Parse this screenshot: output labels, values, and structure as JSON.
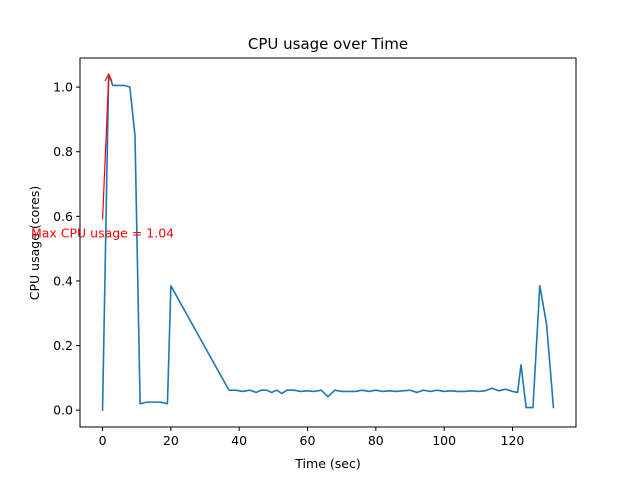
{
  "chart_data": {
    "type": "line",
    "title": "CPU usage over Time",
    "xlabel": "Time (sec)",
    "ylabel": "CPU usage (cores)",
    "xlim": [
      -6.6,
      138.6
    ],
    "ylim": [
      -0.052,
      1.09
    ],
    "xticks": [
      0,
      20,
      40,
      60,
      80,
      100,
      120
    ],
    "xtick_labels": [
      "0",
      "20",
      "40",
      "60",
      "80",
      "100",
      "120"
    ],
    "yticks": [
      0.0,
      0.2,
      0.4,
      0.6,
      0.8,
      1.0
    ],
    "ytick_labels": [
      "0.0",
      "0.2",
      "0.4",
      "0.6",
      "0.8",
      "1.0"
    ],
    "grid": false,
    "series": [
      {
        "color": "#1f77b4",
        "x": [
          0,
          1.8,
          3,
          5,
          6.5,
          8,
          9.5,
          11,
          13,
          15,
          17,
          19,
          20,
          37,
          39,
          41,
          43,
          45,
          46.5,
          48,
          49.5,
          51,
          52.5,
          54,
          56,
          58,
          60,
          62,
          64,
          66,
          68,
          70,
          72,
          74,
          76,
          78,
          80,
          82,
          84,
          86,
          88,
          90,
          92,
          94,
          96,
          98,
          100,
          102,
          104,
          106,
          108,
          110,
          112,
          114,
          116,
          118,
          120,
          121.5,
          122.5,
          124,
          126,
          128,
          130,
          132
        ],
        "y": [
          0.0,
          1.04,
          1.005,
          1.005,
          1.005,
          1.0,
          0.85,
          0.02,
          0.025,
          0.025,
          0.025,
          0.02,
          0.385,
          0.062,
          0.062,
          0.058,
          0.062,
          0.055,
          0.062,
          0.062,
          0.055,
          0.062,
          0.052,
          0.062,
          0.062,
          0.058,
          0.06,
          0.058,
          0.062,
          0.042,
          0.062,
          0.058,
          0.058,
          0.058,
          0.062,
          0.058,
          0.062,
          0.058,
          0.06,
          0.058,
          0.06,
          0.062,
          0.055,
          0.062,
          0.058,
          0.062,
          0.058,
          0.06,
          0.058,
          0.058,
          0.06,
          0.058,
          0.06,
          0.068,
          0.06,
          0.065,
          0.058,
          0.055,
          0.14,
          0.008,
          0.008,
          0.385,
          0.265,
          0.008
        ]
      }
    ],
    "annotation": {
      "text": "Max CPU usage = 1.04",
      "color": "#ff0000",
      "arrow_to": [
        1.8,
        1.04
      ],
      "text_at": [
        0,
        0.59
      ]
    }
  }
}
